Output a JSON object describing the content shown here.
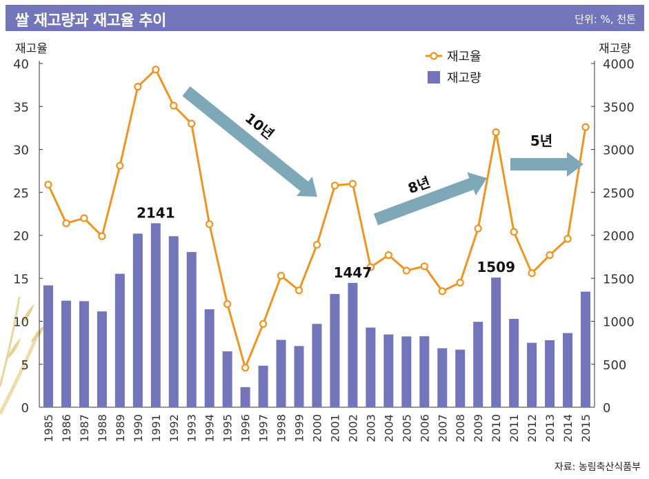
{
  "header": {
    "title": "쌀 재고량과 재고율 추이",
    "unit": "단위: %, 천톤"
  },
  "source": "자료: 농림축산식품부",
  "chart_data": {
    "type": "bar+line",
    "categories": [
      "1985",
      "1986",
      "1987",
      "1988",
      "1989",
      "1990",
      "1991",
      "1992",
      "1993",
      "1994",
      "1995",
      "1996",
      "1997",
      "1998",
      "1999",
      "2000",
      "2001",
      "2002",
      "2003",
      "2004",
      "2005",
      "2006",
      "2007",
      "2008",
      "2009",
      "2010",
      "2011",
      "2012",
      "2013",
      "2014",
      "2015"
    ],
    "series": [
      {
        "name": "재고율",
        "type": "line",
        "axis": "left",
        "color": "#f0931f",
        "values": [
          25.9,
          21.4,
          22.0,
          19.9,
          28.1,
          37.3,
          39.3,
          35.1,
          33.0,
          21.3,
          12.0,
          4.6,
          9.7,
          15.3,
          13.6,
          18.9,
          25.8,
          26.0,
          16.3,
          17.7,
          15.9,
          16.4,
          13.5,
          14.5,
          20.8,
          32.0,
          20.4,
          15.6,
          17.7,
          19.6,
          32.6
        ]
      },
      {
        "name": "재고량",
        "type": "bar",
        "axis": "right",
        "color": "#7275b9",
        "values": [
          1418,
          1240,
          1234,
          1115,
          1553,
          2020,
          2141,
          1990,
          1806,
          1140,
          650,
          234,
          483,
          784,
          712,
          970,
          1318,
          1447,
          927,
          847,
          824,
          826,
          686,
          670,
          994,
          1509,
          1028,
          750,
          780,
          863,
          1345
        ]
      }
    ],
    "left_axis": {
      "label": "재고율",
      "ylim": [
        0,
        40
      ],
      "ticks": [
        "0",
        "5",
        "10",
        "15",
        "20",
        "25",
        "30",
        "35",
        "40"
      ]
    },
    "right_axis": {
      "label": "재고량",
      "ylim": [
        0,
        4000
      ],
      "ticks": [
        "0",
        "500",
        "1000",
        "1500",
        "2000",
        "2500",
        "3000",
        "3500",
        "4000"
      ]
    },
    "data_labels": [
      {
        "category": "1991",
        "text": "2141"
      },
      {
        "category": "2002",
        "text": "1447"
      },
      {
        "category": "2010",
        "text": "1509"
      }
    ],
    "annotations": [
      {
        "text": "10년",
        "from": "1993",
        "to": "2002"
      },
      {
        "text": "8년",
        "from": "2002",
        "to": "2010"
      },
      {
        "text": "5년",
        "from": "2010",
        "to": "2015"
      }
    ],
    "legend_position": "top-center",
    "grid": false
  }
}
